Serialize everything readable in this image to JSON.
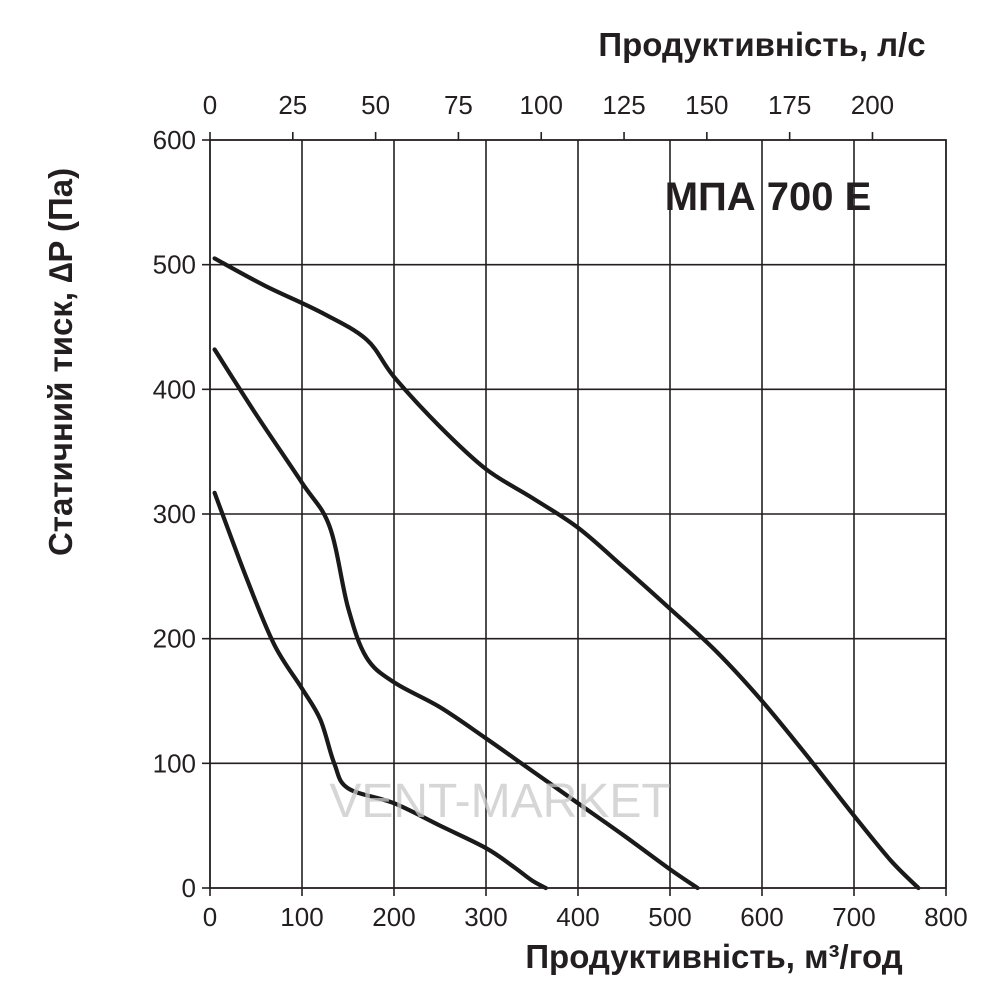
{
  "chart_data": {
    "type": "line",
    "title": "МПА 700 Е",
    "xlabel": "Продуктивність, м³/год",
    "x2label": "Продуктивність, л/с",
    "ylabel": "Статичний тиск, ∆P (Па)",
    "xlim": [
      0,
      800
    ],
    "x2lim": [
      0,
      222.2
    ],
    "ylim": [
      0,
      600
    ],
    "xticks": [
      0,
      100,
      200,
      300,
      400,
      500,
      600,
      700,
      800
    ],
    "x2ticks": [
      0,
      25,
      50,
      75,
      100,
      125,
      150,
      175,
      200
    ],
    "yticks": [
      0,
      100,
      200,
      300,
      400,
      500,
      600
    ],
    "grid": true,
    "watermark": "VENT-MARKET",
    "series": [
      {
        "x": [
          5,
          60,
          120,
          170,
          200,
          250,
          300,
          350,
          400,
          450,
          500,
          550,
          600,
          650,
          700,
          740,
          770
        ],
        "values": [
          505,
          483,
          462,
          440,
          410,
          370,
          336,
          313,
          289,
          257,
          224,
          190,
          150,
          105,
          58,
          22,
          0
        ]
      },
      {
        "x": [
          5,
          50,
          100,
          130,
          150,
          170,
          200,
          250,
          300,
          350,
          400,
          450,
          500,
          530
        ],
        "values": [
          432,
          380,
          325,
          290,
          225,
          185,
          165,
          145,
          120,
          94,
          68,
          42,
          15,
          0
        ]
      },
      {
        "x": [
          5,
          40,
          70,
          100,
          120,
          135,
          150,
          200,
          250,
          300,
          330,
          350,
          365
        ],
        "values": [
          317,
          248,
          195,
          160,
          135,
          100,
          80,
          68,
          50,
          32,
          17,
          6,
          0
        ]
      }
    ]
  }
}
